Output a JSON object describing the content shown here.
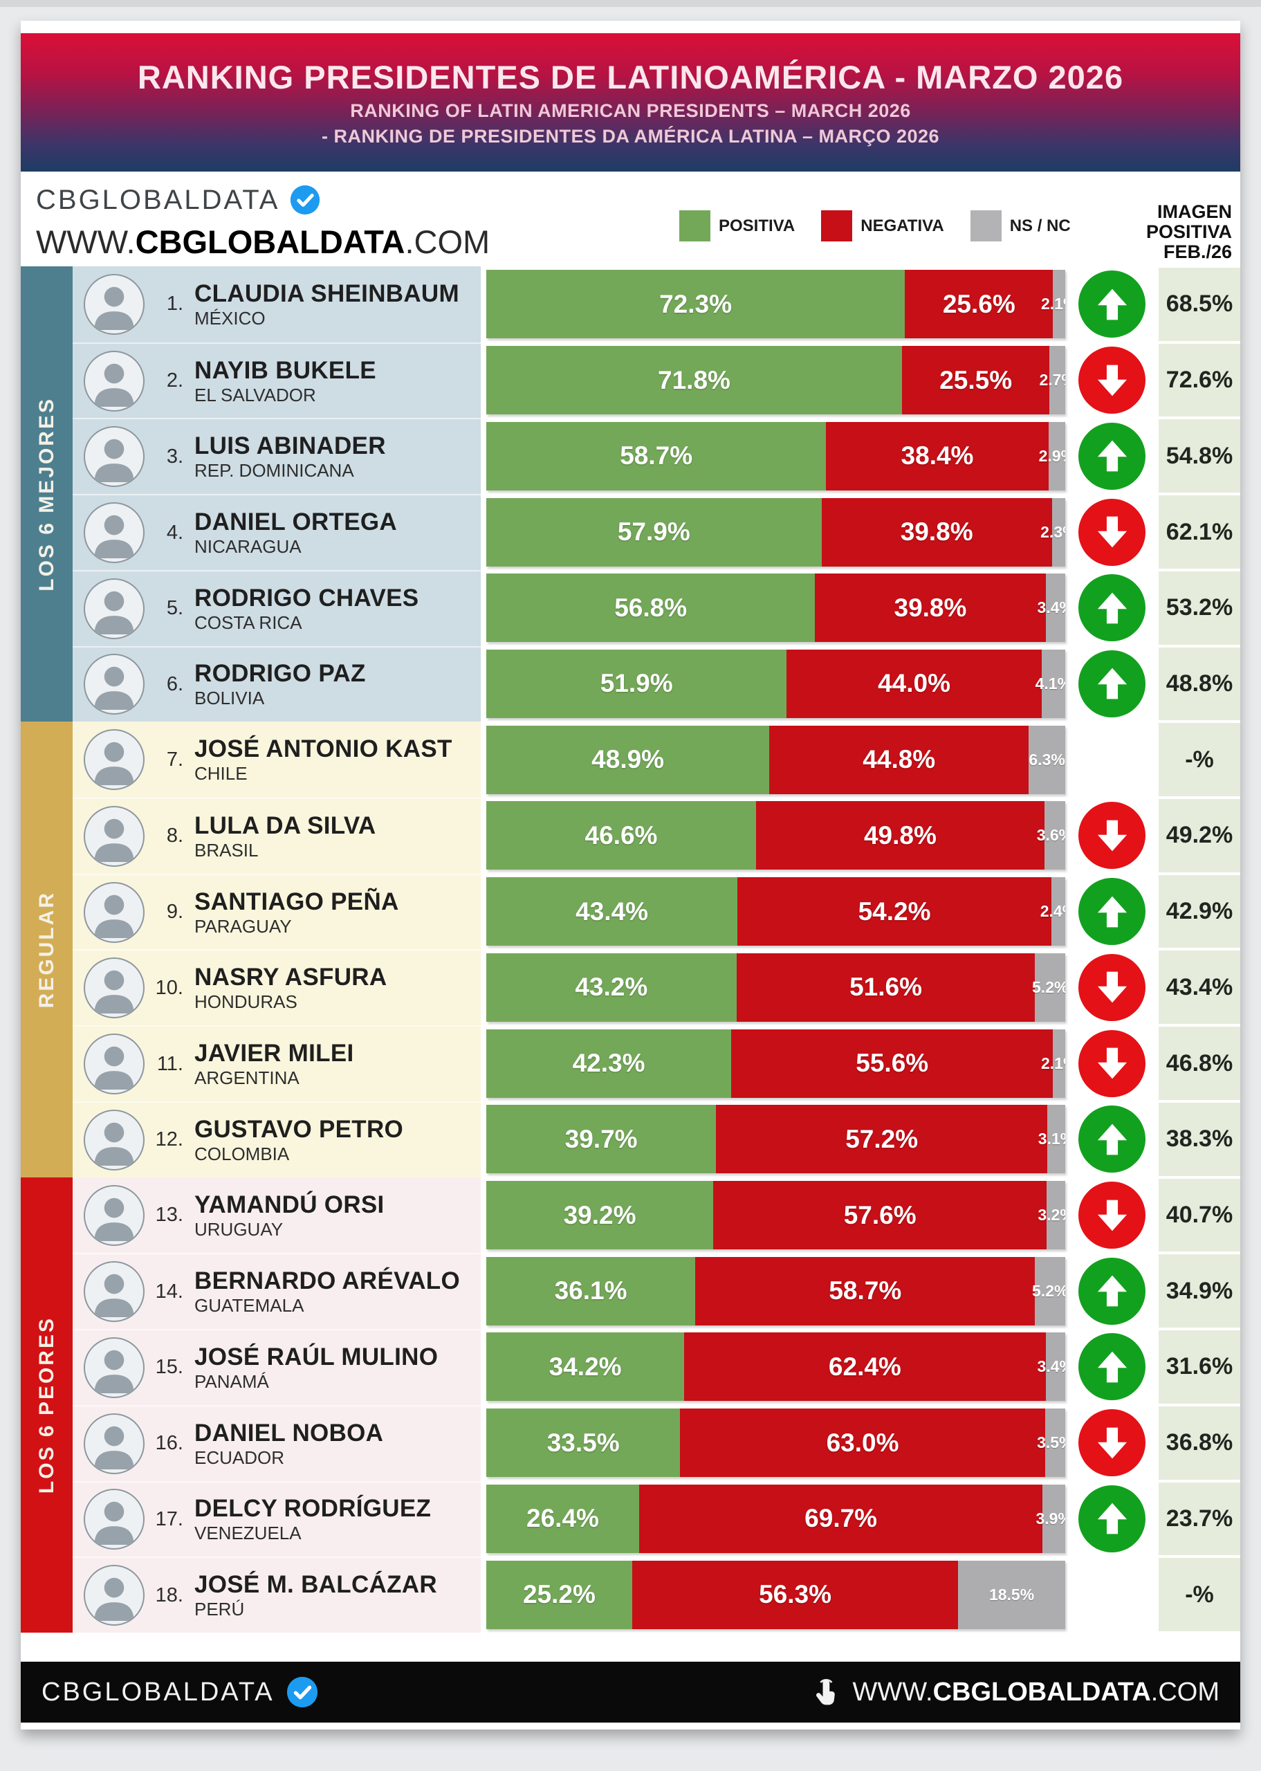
{
  "header": {
    "title": "RANKING PRESIDENTES DE LATINOAMÉRICA - MARZO 2026",
    "subtitle_en": "RANKING OF LATIN AMERICAN PRESIDENTS – MARCH 2026",
    "subtitle_pt": "- RANKING DE PRESIDENTES DA AMÉRICA LATINA – MARÇO 2026"
  },
  "brand": {
    "logo_text": "CBGLOBALDATA",
    "verified_icon": "verified-badge",
    "url_prefix": "WWW.",
    "url_bold": "CBGLOBALDATA",
    "url_suffix": ".COM"
  },
  "legend": {
    "items": [
      {
        "label": "POSITIVA",
        "color": "#74a859"
      },
      {
        "label": "NEGATIVA",
        "color": "#c60f17"
      },
      {
        "label": "NS / NC",
        "color": "#b3b3b5"
      }
    ]
  },
  "right_header": {
    "line1": "IMAGEN",
    "line2": "POSITIVA",
    "line3": "FEB./26"
  },
  "groups": [
    {
      "label": "LOS 6 MEJORES",
      "color": "#4e7f8f",
      "row_bg": "#cedce4"
    },
    {
      "label": "REGULAR",
      "color": "#d3ac56",
      "row_bg": "#faf6dd"
    },
    {
      "label": "LOS 6 PEORES",
      "color": "#d21115",
      "row_bg": "#f8eef0"
    }
  ],
  "colors": {
    "positive": "#74a859",
    "negative": "#c60f17",
    "nsnc": "#adadaf",
    "trend_up": "#12a11f",
    "trend_down": "#e41117",
    "prev_cell_bg": "#e6ecdc",
    "badge_blue": "#1d9bf0"
  },
  "chart_data": {
    "type": "bar",
    "stacked": true,
    "unit": "%",
    "title": "RANKING PRESIDENTES DE LATINOAMÉRICA - MARZO 2026",
    "series_labels": [
      "POSITIVA",
      "NEGATIVA",
      "NS / NC"
    ],
    "extra_column": "IMAGEN POSITIVA FEB./26",
    "rows": [
      {
        "rank": 1,
        "name": "CLAUDIA SHEINBAUM",
        "country": "MÉXICO",
        "positive": 72.3,
        "negative": 25.6,
        "nsnc": 2.1,
        "trend": "up",
        "imagen_positiva_feb26": 68.5,
        "group": 0
      },
      {
        "rank": 2,
        "name": "NAYIB BUKELE",
        "country": "EL SALVADOR",
        "positive": 71.8,
        "negative": 25.5,
        "nsnc": 2.7,
        "trend": "down",
        "imagen_positiva_feb26": 72.6,
        "group": 0
      },
      {
        "rank": 3,
        "name": "LUIS ABINADER",
        "country": "REP. DOMINICANA",
        "positive": 58.7,
        "negative": 38.4,
        "nsnc": 2.9,
        "trend": "up",
        "imagen_positiva_feb26": 54.8,
        "group": 0
      },
      {
        "rank": 4,
        "name": "DANIEL ORTEGA",
        "country": "NICARAGUA",
        "positive": 57.9,
        "negative": 39.8,
        "nsnc": 2.3,
        "trend": "down",
        "imagen_positiva_feb26": 62.1,
        "group": 0
      },
      {
        "rank": 5,
        "name": "RODRIGO CHAVES",
        "country": "COSTA RICA",
        "positive": 56.8,
        "negative": 39.8,
        "nsnc": 3.4,
        "trend": "up",
        "imagen_positiva_feb26": 53.2,
        "group": 0
      },
      {
        "rank": 6,
        "name": "RODRIGO PAZ",
        "country": "BOLIVIA",
        "positive": 51.9,
        "negative": 44.0,
        "nsnc": 4.1,
        "trend": "up",
        "imagen_positiva_feb26": 48.8,
        "group": 0
      },
      {
        "rank": 7,
        "name": "JOSÉ ANTONIO KAST",
        "country": "CHILE",
        "positive": 48.9,
        "negative": 44.8,
        "nsnc": 6.3,
        "trend": "none",
        "imagen_positiva_feb26": null,
        "group": 1
      },
      {
        "rank": 8,
        "name": "LULA DA SILVA",
        "country": "BRASIL",
        "positive": 46.6,
        "negative": 49.8,
        "nsnc": 3.6,
        "trend": "down",
        "imagen_positiva_feb26": 49.2,
        "group": 1
      },
      {
        "rank": 9,
        "name": "SANTIAGO PEÑA",
        "country": "PARAGUAY",
        "positive": 43.4,
        "negative": 54.2,
        "nsnc": 2.4,
        "trend": "up",
        "imagen_positiva_feb26": 42.9,
        "group": 1
      },
      {
        "rank": 10,
        "name": "NASRY ASFURA",
        "country": "HONDURAS",
        "positive": 43.2,
        "negative": 51.6,
        "nsnc": 5.2,
        "trend": "down",
        "imagen_positiva_feb26": 43.4,
        "group": 1
      },
      {
        "rank": 11,
        "name": "JAVIER MILEI",
        "country": "ARGENTINA",
        "positive": 42.3,
        "negative": 55.6,
        "nsnc": 2.1,
        "trend": "down",
        "imagen_positiva_feb26": 46.8,
        "group": 1
      },
      {
        "rank": 12,
        "name": "GUSTAVO PETRO",
        "country": "COLOMBIA",
        "positive": 39.7,
        "negative": 57.2,
        "nsnc": 3.1,
        "trend": "up",
        "imagen_positiva_feb26": 38.3,
        "group": 1
      },
      {
        "rank": 13,
        "name": "YAMANDÚ ORSI",
        "country": "URUGUAY",
        "positive": 39.2,
        "negative": 57.6,
        "nsnc": 3.2,
        "trend": "down",
        "imagen_positiva_feb26": 40.7,
        "group": 2
      },
      {
        "rank": 14,
        "name": "BERNARDO ARÉVALO",
        "country": "GUATEMALA",
        "positive": 36.1,
        "negative": 58.7,
        "nsnc": 5.2,
        "trend": "up",
        "imagen_positiva_feb26": 34.9,
        "group": 2
      },
      {
        "rank": 15,
        "name": "JOSÉ RAÚL MULINO",
        "country": "PANAMÁ",
        "positive": 34.2,
        "negative": 62.4,
        "nsnc": 3.4,
        "trend": "up",
        "imagen_positiva_feb26": 31.6,
        "group": 2
      },
      {
        "rank": 16,
        "name": "DANIEL NOBOA",
        "country": "ECUADOR",
        "positive": 33.5,
        "negative": 63.0,
        "nsnc": 3.5,
        "trend": "down",
        "imagen_positiva_feb26": 36.8,
        "group": 2
      },
      {
        "rank": 17,
        "name": "DELCY RODRÍGUEZ",
        "country": "VENEZUELA",
        "positive": 26.4,
        "negative": 69.7,
        "nsnc": 3.9,
        "trend": "up",
        "imagen_positiva_feb26": 23.7,
        "group": 2
      },
      {
        "rank": 18,
        "name": "JOSÉ M. BALCÁZAR",
        "country": "PERÚ",
        "positive": 25.2,
        "negative": 56.3,
        "nsnc": 18.5,
        "trend": "none",
        "imagen_positiva_feb26": null,
        "group": 2
      }
    ]
  },
  "footer": {
    "logo_text": "CBGLOBALDATA",
    "url_prefix": "WWW.",
    "url_bold": "CBGLOBALDATA",
    "url_suffix": ".COM"
  }
}
